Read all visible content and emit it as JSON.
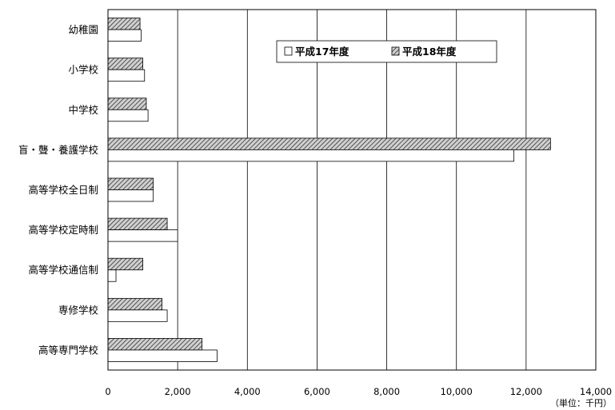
{
  "chart_data": {
    "type": "bar",
    "orientation": "horizontal",
    "categories": [
      "幼稚園",
      "小学校",
      "中学校",
      "盲・聾・養護学校",
      "高等学校全日制",
      "高等学校定時制",
      "高等学校通信制",
      "専修学校",
      "高等専門学校"
    ],
    "series": [
      {
        "name": "平成17年度",
        "values": [
          950,
          1050,
          1150,
          11650,
          1300,
          2000,
          230,
          1700,
          3130
        ],
        "color": "#ffffff",
        "pattern": "none"
      },
      {
        "name": "平成18年度",
        "values": [
          920,
          1000,
          1100,
          12700,
          1300,
          1700,
          1000,
          1550,
          2700
        ],
        "color": "#999999",
        "pattern": "diagonal-hatch"
      }
    ],
    "xlim": [
      0,
      14000
    ],
    "xticks": [
      0,
      2000,
      4000,
      6000,
      8000,
      10000,
      12000,
      14000
    ],
    "xtick_labels": [
      "0",
      "2,000",
      "4,000",
      "6,000",
      "8,000",
      "10,000",
      "12,000",
      "14,000"
    ],
    "unit_label": "（単位：千円）",
    "grid": true,
    "legend_position": "top-center"
  }
}
